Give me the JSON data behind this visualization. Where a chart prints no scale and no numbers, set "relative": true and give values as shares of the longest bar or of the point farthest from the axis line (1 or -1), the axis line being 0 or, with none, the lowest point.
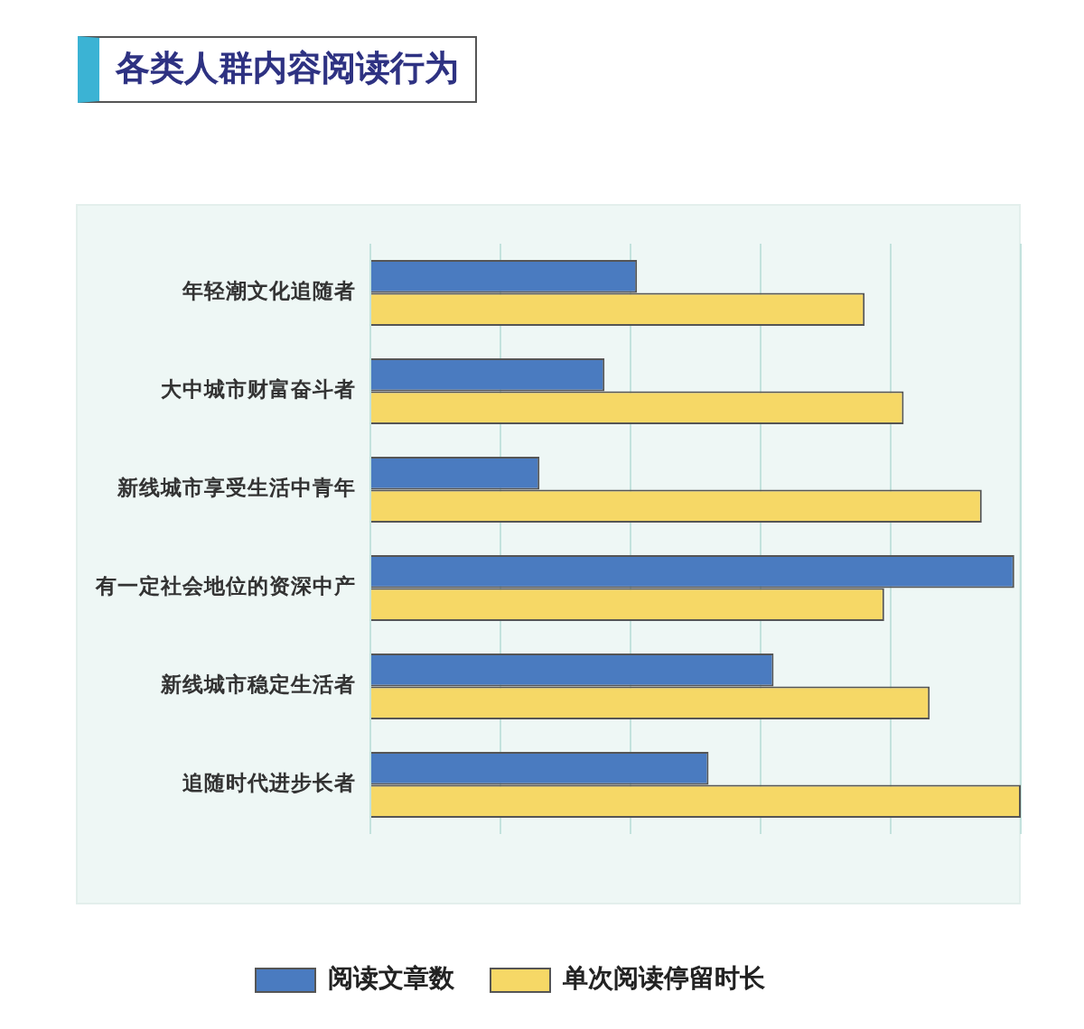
{
  "chart_data": {
    "type": "bar",
    "title": "各类人群内容阅读行为",
    "orientation": "horizontal",
    "relative": true,
    "categories": [
      "年轻潮文化追随者",
      "大中城市财富奋斗者",
      "新线城市享受生活中青年",
      "有一定社会地位的资深中产",
      "新线城市稳定生活者",
      "追随时代进步长者"
    ],
    "series": [
      {
        "name": "阅读文章数",
        "color": "#4a7bc0",
        "values": [
          0.41,
          0.36,
          0.26,
          0.99,
          0.62,
          0.52
        ]
      },
      {
        "name": "单次阅读停留时长",
        "color": "#f6d866",
        "values": [
          0.76,
          0.82,
          0.94,
          0.79,
          0.86,
          1.0
        ]
      }
    ],
    "grid": "x",
    "legend": "bottom"
  }
}
